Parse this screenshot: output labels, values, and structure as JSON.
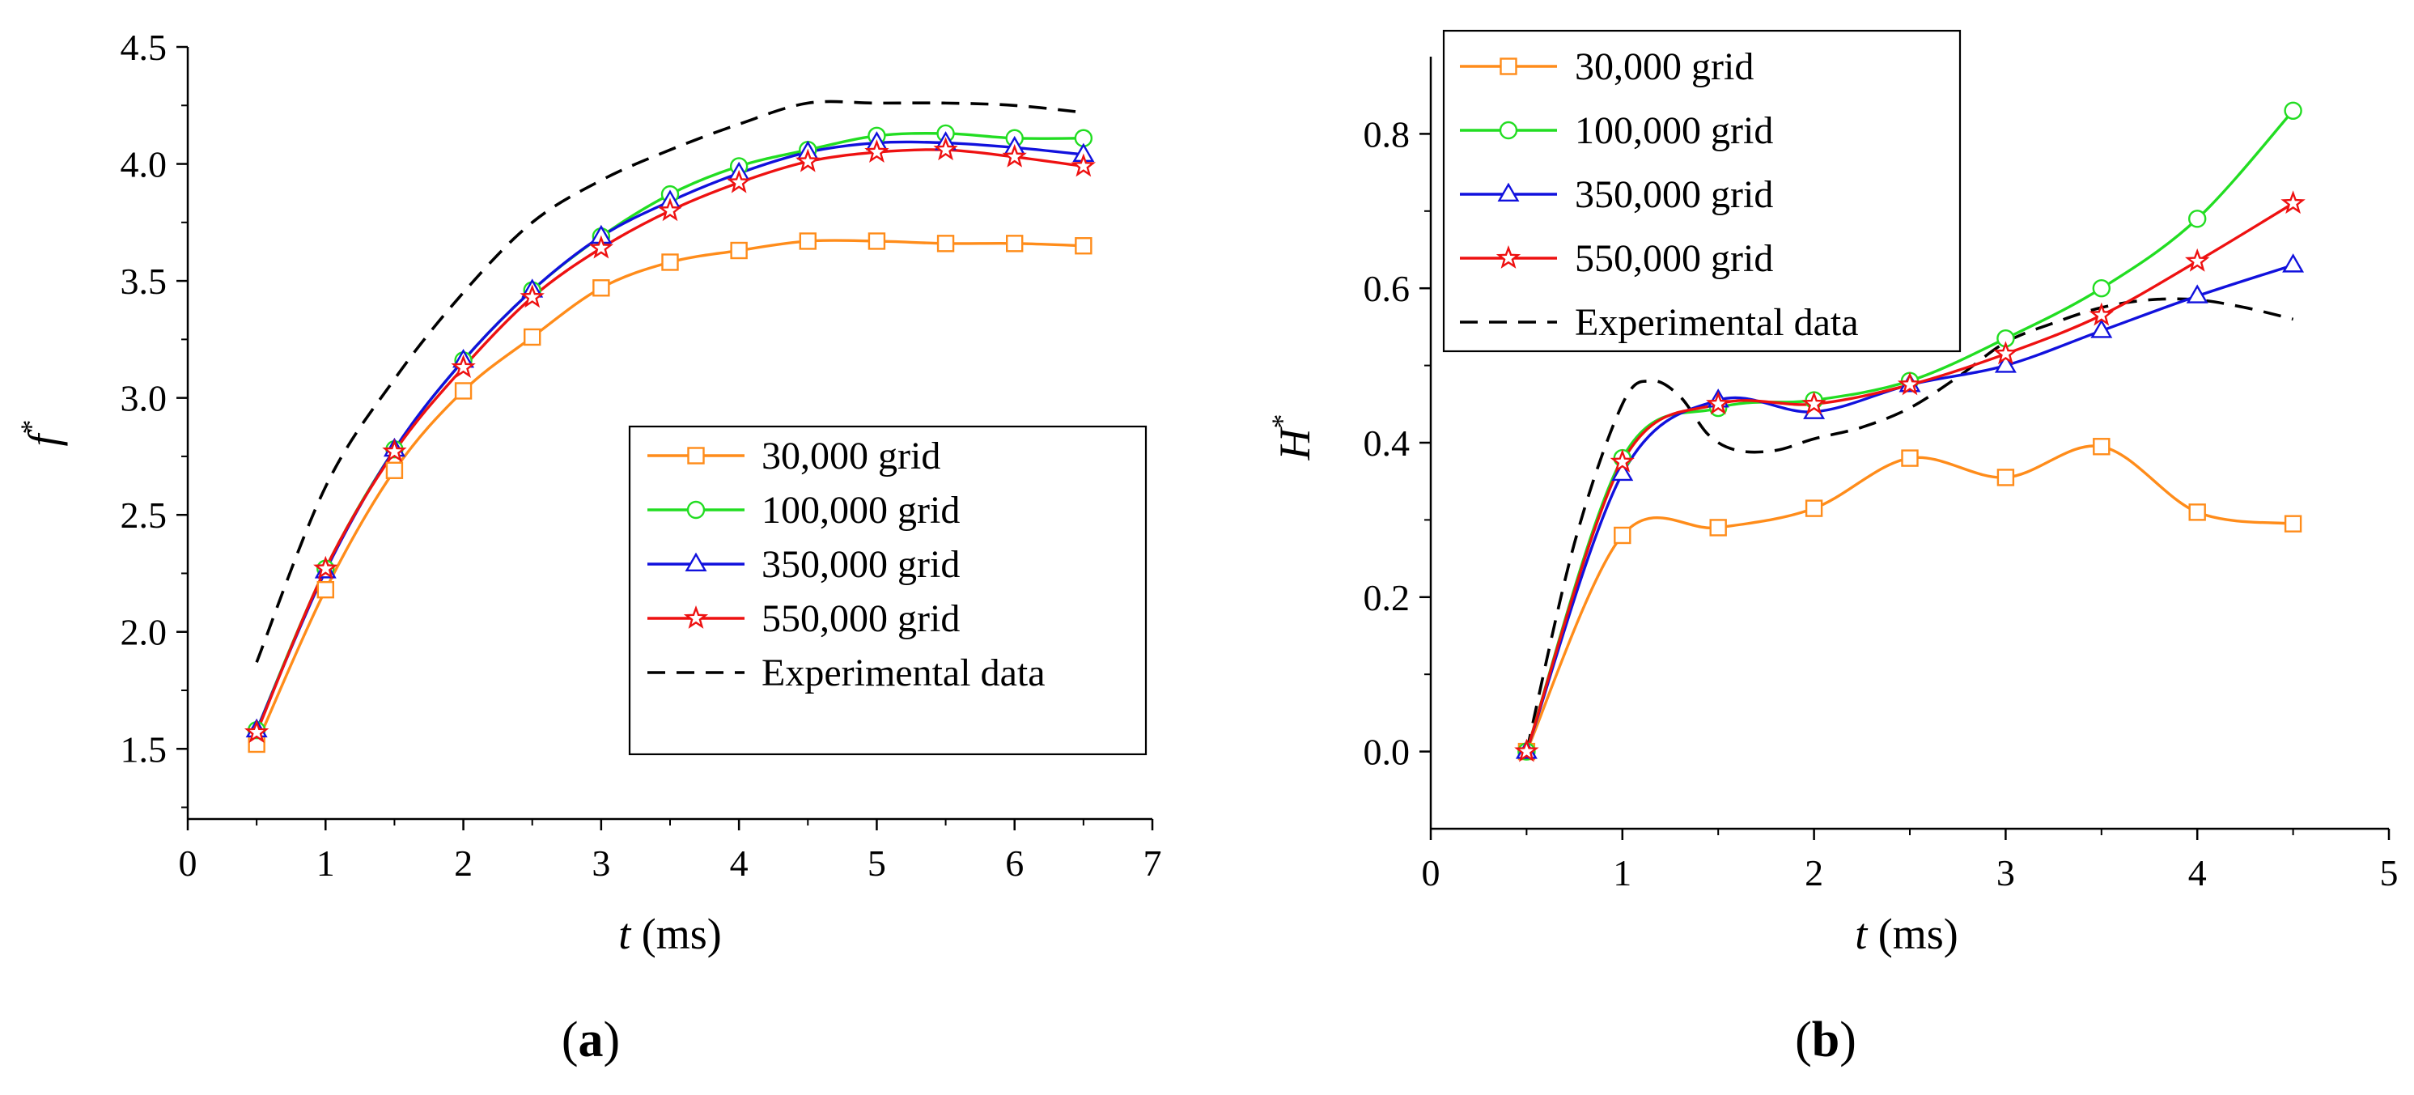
{
  "chart_data": [
    {
      "panel_label": {
        "open": "(",
        "letter": "a",
        "close": ")"
      },
      "type": "line",
      "xlabel": {
        "var": "t",
        "unit": " (ms)"
      },
      "ylabel": {
        "var": "f",
        "sup": "*"
      },
      "xlim": [
        0,
        7
      ],
      "ylim": [
        1.2,
        4.5
      ],
      "xticks": [
        "0",
        "1",
        "2",
        "3",
        "4",
        "5",
        "6",
        "7"
      ],
      "yticks": [
        "1.5",
        "2.0",
        "2.5",
        "3.0",
        "3.5",
        "4.0",
        "4.5"
      ],
      "ytick_values": [
        1.5,
        2.0,
        2.5,
        3.0,
        3.5,
        4.0,
        4.5
      ],
      "grid": false,
      "legend_position": "lower-right",
      "x": [
        0.5,
        1.0,
        1.5,
        2.0,
        2.5,
        3.0,
        3.5,
        4.0,
        4.5,
        5.0,
        5.5,
        6.0,
        6.5
      ],
      "series": [
        {
          "name": "30,000 grid",
          "color": "#FF8C1A",
          "marker": "square",
          "values": [
            1.52,
            2.18,
            2.69,
            3.03,
            3.26,
            3.47,
            3.58,
            3.63,
            3.67,
            3.67,
            3.66,
            3.66,
            3.65
          ]
        },
        {
          "name": "100,000 grid",
          "color": "#22DD22",
          "marker": "circle",
          "values": [
            1.58,
            2.27,
            2.78,
            3.16,
            3.46,
            3.69,
            3.87,
            3.99,
            4.06,
            4.12,
            4.13,
            4.11,
            4.11
          ]
        },
        {
          "name": "350,000 grid",
          "color": "#1111DD",
          "marker": "triangle",
          "values": [
            1.58,
            2.26,
            2.78,
            3.16,
            3.46,
            3.69,
            3.84,
            3.96,
            4.05,
            4.09,
            4.09,
            4.07,
            4.04
          ]
        },
        {
          "name": "550,000 grid",
          "color": "#EE1111",
          "marker": "star",
          "values": [
            1.57,
            2.27,
            2.77,
            3.13,
            3.43,
            3.64,
            3.8,
            3.92,
            4.01,
            4.05,
            4.06,
            4.03,
            3.99
          ]
        },
        {
          "name": "Experimental data",
          "color": "#000000",
          "marker": "none",
          "dash": true,
          "x": [
            0.5,
            1.0,
            1.5,
            2.0,
            2.5,
            3.0,
            3.5,
            4.0,
            4.5,
            5.0,
            5.5,
            6.0,
            6.5
          ],
          "values": [
            1.87,
            2.62,
            3.08,
            3.45,
            3.75,
            3.93,
            4.06,
            4.17,
            4.26,
            4.26,
            4.26,
            4.25,
            4.22
          ]
        }
      ]
    },
    {
      "panel_label": {
        "open": "(",
        "letter": "b",
        "close": ")"
      },
      "type": "line",
      "xlabel": {
        "var": "t",
        "unit": " (ms)"
      },
      "ylabel": {
        "var": "H",
        "sup": "*"
      },
      "xlim": [
        0,
        5
      ],
      "ylim": [
        -0.1,
        0.9
      ],
      "xticks": [
        "0",
        "1",
        "2",
        "3",
        "4",
        "5"
      ],
      "yticks": [
        "0.0",
        "0.2",
        "0.4",
        "0.6",
        "0.8"
      ],
      "ytick_values": [
        0.0,
        0.2,
        0.4,
        0.6,
        0.8
      ],
      "grid": false,
      "legend_position": "top-left",
      "x": [
        0.5,
        1.0,
        1.5,
        2.0,
        2.5,
        3.0,
        3.5,
        4.0,
        4.5
      ],
      "series": [
        {
          "name": "30,000 grid",
          "color": "#FF8C1A",
          "marker": "square",
          "values": [
            0.0,
            0.28,
            0.29,
            0.315,
            0.38,
            0.355,
            0.395,
            0.31,
            0.295
          ]
        },
        {
          "name": "100,000 grid",
          "color": "#22DD22",
          "marker": "circle",
          "values": [
            0.0,
            0.38,
            0.445,
            0.455,
            0.48,
            0.535,
            0.6,
            0.69,
            0.83
          ]
        },
        {
          "name": "350,000 grid",
          "color": "#1111DD",
          "marker": "triangle",
          "values": [
            0.0,
            0.36,
            0.455,
            0.44,
            0.475,
            0.5,
            0.545,
            0.59,
            0.63
          ]
        },
        {
          "name": "550,000 grid",
          "color": "#EE1111",
          "marker": "star",
          "values": [
            0.0,
            0.375,
            0.45,
            0.45,
            0.475,
            0.515,
            0.565,
            0.635,
            0.71
          ]
        },
        {
          "name": "Experimental data",
          "color": "#000000",
          "marker": "none",
          "dash": true,
          "x": [
            0.5,
            0.75,
            1.0,
            1.15,
            1.3,
            1.45,
            1.6,
            1.8,
            2.0,
            2.25,
            2.5,
            2.75,
            3.0,
            3.25,
            3.5,
            3.75,
            4.0,
            4.25,
            4.5
          ],
          "values": [
            0.0,
            0.27,
            0.45,
            0.48,
            0.46,
            0.41,
            0.39,
            0.39,
            0.405,
            0.42,
            0.445,
            0.485,
            0.53,
            0.555,
            0.575,
            0.585,
            0.585,
            0.575,
            0.56
          ]
        }
      ]
    }
  ]
}
